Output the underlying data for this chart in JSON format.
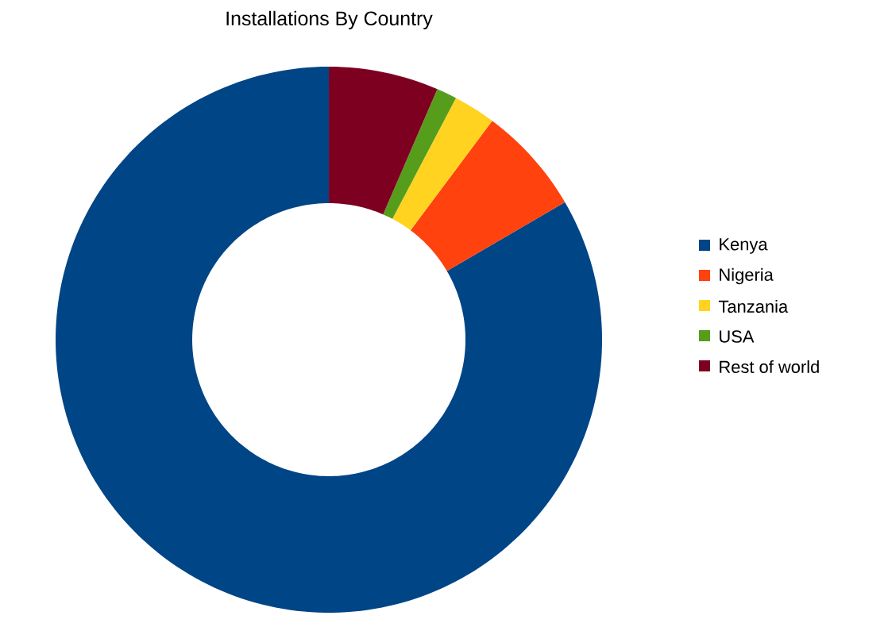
{
  "chart_data": {
    "type": "donut",
    "title": "Installations By Country",
    "categories": [
      "Kenya",
      "Nigeria",
      "Tanzania",
      "USA",
      "Rest of world"
    ],
    "values": [
      83.4,
      6.4,
      2.5,
      1.2,
      6.5
    ],
    "colors": [
      "#004586",
      "#ff420e",
      "#ffd320",
      "#579d1c",
      "#7e0021"
    ],
    "legend": "right"
  }
}
